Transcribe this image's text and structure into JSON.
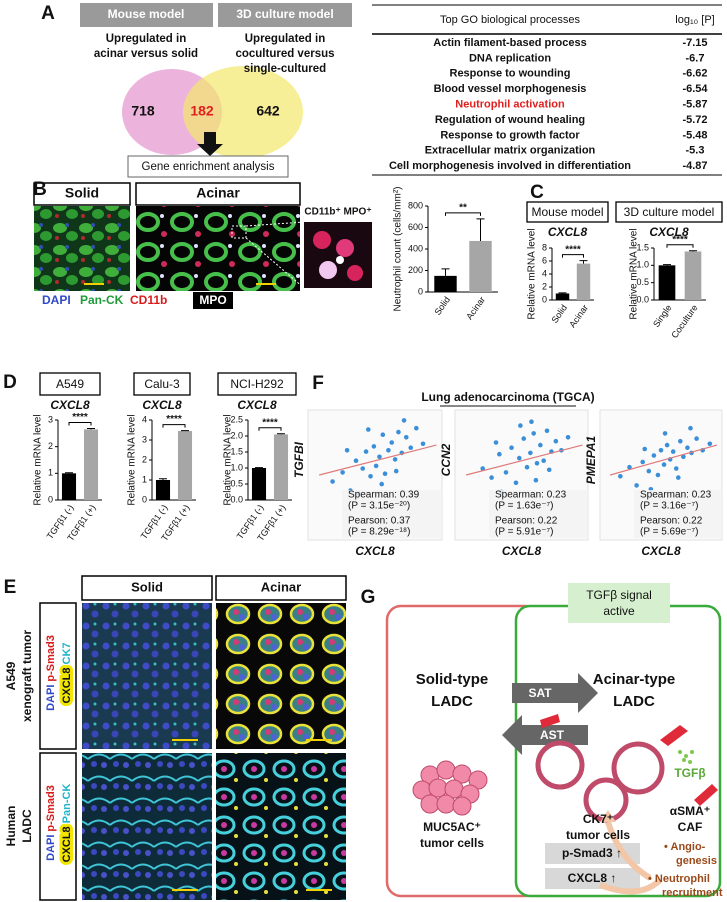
{
  "panel_labels": [
    "A",
    "B",
    "C",
    "D",
    "E",
    "F",
    "G"
  ],
  "panel_a": {
    "left_header": "Mouse model",
    "left_text": [
      "Upregulated in",
      "acinar versus solid"
    ],
    "right_header": "3D culture model",
    "right_text": [
      "Upregulated in",
      "cocultured versus",
      "single-cultured"
    ],
    "left_only": 718,
    "overlap": 182,
    "right_only": 642,
    "box": "Gene enrichment analysis",
    "table": {
      "header": [
        "Top GO biological processes",
        "log₁₀ [P]"
      ],
      "highlight_row": 4,
      "highlight_color": "#e02020",
      "rows": [
        [
          "Actin filament-based process",
          -7.15
        ],
        [
          "DNA replication",
          -6.7
        ],
        [
          "Response to wounding",
          -6.62
        ],
        [
          "Blood vessel morphogenesis",
          -6.54
        ],
        [
          "Neutrophil activation",
          -5.87
        ],
        [
          "Regulation of wound healing",
          -5.72
        ],
        [
          "Response to growth factor",
          -5.48
        ],
        [
          "Extracellular matrix organization",
          -5.3
        ],
        [
          "Cell morphogenesis involved in differentiation",
          -4.87
        ]
      ]
    }
  },
  "panel_b": {
    "images": [
      "Solid",
      "Acinar"
    ],
    "inset": "CD11b⁺ MPO⁺",
    "stains": [
      {
        "name": "DAPI",
        "color": "#2f49c9"
      },
      {
        "name": "Pan-CK",
        "color": "#1f9b3a"
      },
      {
        "name": "CD11b",
        "color": "#d81b1b"
      },
      {
        "name": "MPO",
        "color": "#ffffff"
      }
    ]
  },
  "panel_e": {
    "columns": [
      "Solid",
      "Acinar"
    ],
    "rows": [
      {
        "label": [
          "A549",
          "xenograft tumor"
        ],
        "stains": [
          {
            "name": "DAPI",
            "color": "#2f49c9"
          },
          {
            "name": "p-Smad3",
            "color": "#d81b1b"
          },
          {
            "name": "CK7",
            "color": "#20b5c9"
          },
          {
            "name": "CXCL8",
            "color": "#f2e600"
          }
        ]
      },
      {
        "label": [
          "Human",
          "LADC"
        ],
        "stains": [
          {
            "name": "DAPI",
            "color": "#2f49c9"
          },
          {
            "name": "p-Smad3",
            "color": "#d81b1b"
          },
          {
            "name": "Pan-CK",
            "color": "#20b5c9"
          },
          {
            "name": "CXCL8",
            "color": "#f2e600"
          }
        ]
      }
    ]
  },
  "panel_f_title": "Lung adenocarcinoma (TGCA)",
  "panel_g": {
    "signal": [
      "TGFβ signal",
      "active"
    ],
    "solid": [
      "Solid-type",
      "LADC"
    ],
    "acinar": [
      "Acinar-type",
      "LADC"
    ],
    "sat": "SAT",
    "ast": "AST",
    "tgfb": "TGFβ",
    "muc": [
      "MUC5AC⁺",
      "tumor cells"
    ],
    "ck7": [
      "CK7⁺",
      "tumor cells"
    ],
    "caf": [
      "αSMA⁺",
      "CAF"
    ],
    "markers": [
      "p-Smad3 ↑",
      "CXCL8 ↑"
    ],
    "effects": [
      "• Angio-",
      "genesis",
      "• Neutrophil",
      "recruitment"
    ]
  },
  "chart_data": [
    {
      "type": "bar",
      "ylabel": "Neutrophil count (cells/mm²)",
      "categories": [
        "Solid",
        "Acinar"
      ],
      "values": [
        150,
        475
      ],
      "errors": [
        65,
        205
      ],
      "colors": [
        "#000000",
        "#a6a6a6"
      ],
      "ylim": [
        0,
        800
      ],
      "yticks": [
        0,
        200,
        400,
        600,
        800
      ],
      "significance": "**"
    },
    {
      "type": "bar",
      "title": "Mouse model",
      "subtitle": "CXCL8",
      "ylabel": "Relative mRNA level",
      "categories": [
        "Solid",
        "Acinar"
      ],
      "values": [
        1,
        5.6
      ],
      "errors": [
        0.1,
        0.45
      ],
      "colors": [
        "#000000",
        "#a6a6a6"
      ],
      "ylim": [
        0,
        8
      ],
      "yticks": [
        0,
        2,
        4,
        6,
        8
      ],
      "significance": "****"
    },
    {
      "type": "bar",
      "title": "3D culture model",
      "subtitle": "CXCL8",
      "ylabel": "Relative mRNA level",
      "categories": [
        "Single",
        "Coculture"
      ],
      "values": [
        1,
        1.4
      ],
      "errors": [
        0.02,
        0.02
      ],
      "colors": [
        "#000000",
        "#a6a6a6"
      ],
      "ylim": [
        0,
        1.5
      ],
      "yticks": [
        {
          "value": 0,
          "label": "0.0"
        },
        {
          "value": 0.5,
          "label": "0.5"
        },
        {
          "value": 1,
          "label": "1.0"
        },
        {
          "value": 1.5,
          "label": "1.5"
        }
      ],
      "significance": "****"
    },
    {
      "type": "bar",
      "title": "A549",
      "subtitle": "CXCL8",
      "ylabel": "Relative mRNA level",
      "categories": [
        "TGFβ1 (-)",
        "TGFβ1 (+)"
      ],
      "values": [
        1,
        2.65
      ],
      "errors": [
        0.02,
        0.03
      ],
      "colors": [
        "#000000",
        "#a6a6a6"
      ],
      "ylim": [
        0,
        3
      ],
      "yticks": [
        0,
        1,
        2,
        3
      ],
      "significance": "****"
    },
    {
      "type": "bar",
      "title": "Calu-3",
      "subtitle": "CXCL8",
      "ylabel": "Relative mRNA level",
      "categories": [
        "TGFβ1 (-)",
        "TGFβ1 (+)"
      ],
      "values": [
        1,
        3.45
      ],
      "errors": [
        0.06,
        0.02
      ],
      "colors": [
        "#000000",
        "#a6a6a6"
      ],
      "ylim": [
        0,
        4
      ],
      "yticks": [
        0,
        1,
        2,
        3,
        4
      ],
      "significance": "****"
    },
    {
      "type": "bar",
      "title": "NCI-H292",
      "subtitle": "CXCL8",
      "ylabel": "Relative mRNA level",
      "categories": [
        "TGFβ1 (-)",
        "TGFβ1 (+)"
      ],
      "values": [
        1,
        2.05
      ],
      "errors": [
        0.01,
        0.02
      ],
      "colors": [
        "#000000",
        "#a6a6a6"
      ],
      "ylim": [
        0,
        2.5
      ],
      "yticks": [
        {
          "value": 0,
          "label": "0.0"
        },
        {
          "value": 0.5,
          "label": "0.5"
        },
        {
          "value": 1,
          "label": "1.0"
        },
        {
          "value": 1.5,
          "label": "1.5"
        },
        {
          "value": 2,
          "label": "2.0"
        },
        {
          "value": 2.5,
          "label": "2.5"
        }
      ],
      "significance": "****"
    },
    {
      "type": "scatter",
      "xlabel": "CXCL8",
      "ylabel": "TGFBI",
      "color": "#3a8fd8",
      "xlim": [
        3,
        15
      ],
      "ylim": [
        6,
        16
      ],
      "stats": [
        "Spearman: 0.39",
        "(P = 3.15e⁻²⁰)",
        "Pearson: 0.37",
        "(P = 8.29e⁻¹⁸)"
      ],
      "x": [
        5.2,
        6.1,
        6.8,
        7.3,
        7.9,
        8.2,
        8.6,
        8.9,
        9.1,
        9.4,
        9.7,
        9.9,
        10.2,
        10.5,
        10.8,
        11.1,
        11.4,
        11.8,
        12.2,
        12.7,
        13.3,
        7.5,
        8.4,
        9.6,
        10.9,
        6.5,
        11.6
      ],
      "y": [
        10.5,
        11.2,
        9.8,
        12.1,
        11.5,
        12.8,
        10.9,
        13.2,
        11.7,
        12.4,
        14.1,
        11.1,
        12.9,
        13.5,
        12.2,
        14.3,
        12.7,
        13.9,
        13.1,
        14.6,
        13.4,
        9.6,
        14.5,
        10.3,
        11.3,
        12.9,
        15.2
      ]
    },
    {
      "type": "scatter",
      "xlabel": "CXCL8",
      "ylabel": "CCN2",
      "color": "#3a8fd8",
      "xlim": [
        3,
        15
      ],
      "ylim": [
        6,
        16
      ],
      "stats": [
        "Spearman: 0.23",
        "(P = 1.63e⁻⁷)",
        "Pearson: 0.22",
        "(P = 5.91e⁻⁷)"
      ],
      "x": [
        5.5,
        6.3,
        7.0,
        7.6,
        8.1,
        8.5,
        8.8,
        9.2,
        9.5,
        9.8,
        10.1,
        10.4,
        10.7,
        11.0,
        11.3,
        11.7,
        12.1,
        12.6,
        13.2,
        7.2,
        8.9,
        10.3,
        11.5,
        6.7,
        9.9
      ],
      "y": [
        11.5,
        10.8,
        12.6,
        11.2,
        13.1,
        10.4,
        12.3,
        13.8,
        11.6,
        12.7,
        14.2,
        11.9,
        13.3,
        12.1,
        14.4,
        12.8,
        13.6,
        12.9,
        13.9,
        9.7,
        14.8,
        10.6,
        11.4,
        13.5,
        15.1
      ]
    },
    {
      "type": "scatter",
      "xlabel": "CXCL8",
      "ylabel": "PMEPA1",
      "color": "#3a8fd8",
      "xlim": [
        3,
        15
      ],
      "ylim": [
        6,
        16
      ],
      "stats": [
        "Spearman: 0.23",
        "(P = 3.16e⁻⁷)",
        "Pearson: 0.22",
        "(P = 5.69e⁻⁷)"
      ],
      "x": [
        5.0,
        5.9,
        6.6,
        7.2,
        7.8,
        8.3,
        8.7,
        9.0,
        9.3,
        9.6,
        9.9,
        10.2,
        10.5,
        10.9,
        11.2,
        11.6,
        12.0,
        12.5,
        13.1,
        13.8,
        8.0,
        9.4,
        10.7,
        7.4,
        11.9
      ],
      "y": [
        10.9,
        11.6,
        10.2,
        12.0,
        11.3,
        12.5,
        11.0,
        12.9,
        11.8,
        13.3,
        12.2,
        12.8,
        11.5,
        13.6,
        12.4,
        13.1,
        12.7,
        13.8,
        12.9,
        13.4,
        9.9,
        14.2,
        10.8,
        13.0,
        14.6
      ]
    }
  ]
}
